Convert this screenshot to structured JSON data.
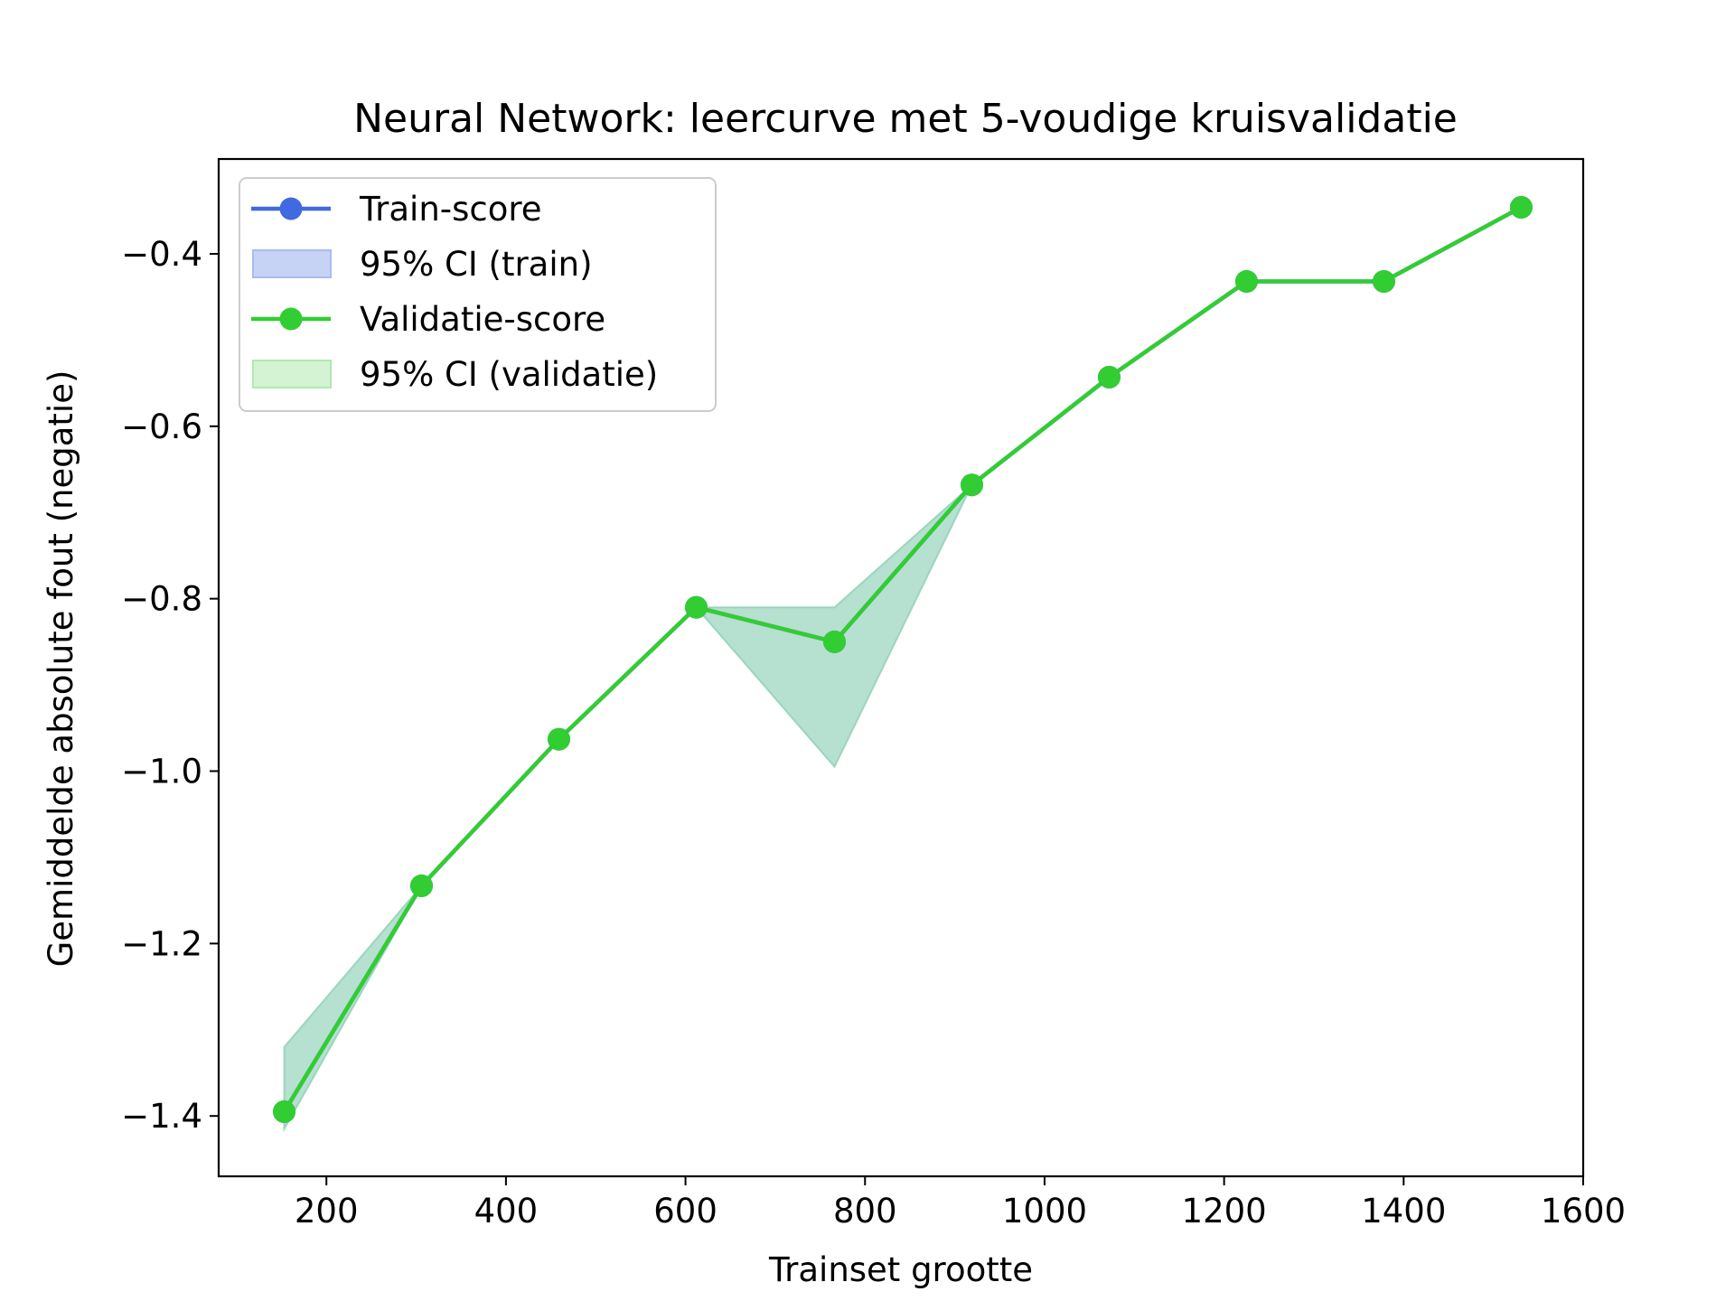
{
  "chart_data": {
    "type": "line",
    "title": "Neural Network: leercurve met 5-voudige kruisvalidatie",
    "xlabel": "Trainset grootte",
    "ylabel": "Gemiddelde absolute fout (negatie)",
    "xlim": [
      80,
      1600
    ],
    "ylim": [
      -1.47,
      -0.29
    ],
    "xticks": [
      200,
      400,
      600,
      800,
      1000,
      1200,
      1400,
      1600
    ],
    "yticks": [
      -1.4,
      -1.2,
      -1.0,
      -0.8,
      -0.6,
      -0.4
    ],
    "ytick_labels": [
      "−1.4",
      "−1.2",
      "−1.0",
      "−0.8",
      "−0.6",
      "−0.4"
    ],
    "grid": false,
    "legend_position": "top-left",
    "x": [
      153,
      306,
      459,
      612,
      766,
      919,
      1072,
      1225,
      1378,
      1531
    ],
    "series": [
      {
        "name": "Train-score",
        "color": "#4169e1",
        "values": [
          -1.395,
          -1.133,
          -0.963,
          -0.81,
          -0.85,
          -0.668,
          -0.543,
          -0.432,
          -0.432,
          -0.346
        ],
        "ci_name": "95% CI (train)",
        "ci_color": "#c6d3f5",
        "ci_lower": [
          -1.395,
          -1.133,
          -0.963,
          -0.81,
          -0.85,
          -0.668,
          -0.543,
          -0.432,
          -0.432,
          -0.346
        ],
        "ci_upper": [
          -1.395,
          -1.133,
          -0.963,
          -0.81,
          -0.85,
          -0.668,
          -0.543,
          -0.432,
          -0.432,
          -0.346
        ]
      },
      {
        "name": "Validatie-score",
        "color": "#32cd32",
        "values": [
          -1.395,
          -1.133,
          -0.963,
          -0.81,
          -0.85,
          -0.668,
          -0.543,
          -0.432,
          -0.432,
          -0.346
        ],
        "ci_name": "95% CI (validatie)",
        "ci_color": "#8fcfb5",
        "ci_lower": [
          -1.415,
          -1.133,
          -0.963,
          -0.81,
          -0.995,
          -0.668,
          -0.543,
          -0.432,
          -0.432,
          -0.346
        ],
        "ci_upper": [
          -1.32,
          -1.133,
          -0.963,
          -0.81,
          -0.81,
          -0.668,
          -0.543,
          -0.432,
          -0.432,
          -0.346
        ]
      }
    ],
    "legend": [
      {
        "label": "Train-score",
        "kind": "line",
        "color": "#4169e1"
      },
      {
        "label": "95% CI (train)",
        "kind": "patch",
        "color": "#c6d3f5",
        "edge": "#a9bcf0"
      },
      {
        "label": "Validatie-score",
        "kind": "line",
        "color": "#32cd32"
      },
      {
        "label": "95% CI (validatie)",
        "kind": "patch",
        "color": "#d3f3d3",
        "edge": "#b2e8b2"
      }
    ]
  }
}
